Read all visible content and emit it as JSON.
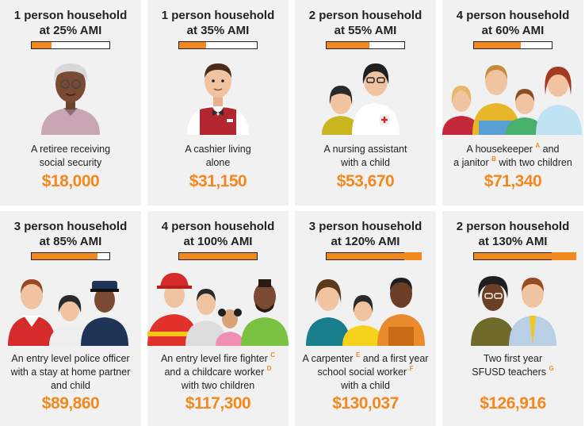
{
  "cards": [
    {
      "title_line1": "1 person household",
      "title_line2": "at 25% AMI",
      "ami_percent": 25,
      "desc_line1": "A retiree receiving",
      "desc_line2": "social security",
      "salary": "$18,000"
    },
    {
      "title_line1": "1 person household",
      "title_line2": "at 35% AMI",
      "ami_percent": 35,
      "desc_line1": "A cashier living",
      "desc_line2": "alone",
      "salary": "$31,150"
    },
    {
      "title_line1": "2 person household",
      "title_line2": "at 55% AMI",
      "ami_percent": 55,
      "desc_line1": "A nursing assistant",
      "desc_line2": "with a child",
      "salary": "$53,670"
    },
    {
      "title_line1": "4 person household",
      "title_line2": "at 60% AMI",
      "ami_percent": 60,
      "desc_line1a": "A housekeeper",
      "desc_sup1": "A",
      "desc_line1b": "and",
      "desc_line2a": "a janitor",
      "desc_sup2": "B",
      "desc_line2b": "with two children",
      "salary": "$71,340"
    },
    {
      "title_line1": "3 person household",
      "title_line2": "at 85% AMI",
      "ami_percent": 85,
      "desc_line1": "An entry level police officer",
      "desc_line2": "with a stay at home partner",
      "desc_line3": "and child",
      "salary": "$89,860"
    },
    {
      "title_line1": "4 person household",
      "title_line2": "at 100% AMI",
      "ami_percent": 100,
      "desc_line1a": "An entry level fire fighter",
      "desc_sup1": "C",
      "desc_line2a": "and a childcare worker",
      "desc_sup2": "D",
      "desc_line3": "with two children",
      "salary": "$117,300"
    },
    {
      "title_line1": "3 person household",
      "title_line2": "at 120% AMI",
      "ami_percent": 120,
      "desc_line1a": "A carpenter",
      "desc_sup1": "E",
      "desc_line1b": "and a first year",
      "desc_line2a": "school social worker",
      "desc_sup2": "F",
      "desc_line3": "with a child",
      "salary": "$130,037"
    },
    {
      "title_line1": "2 person household",
      "title_line2": "at 130% AMI",
      "ami_percent": 130,
      "desc_line1": "Two first year",
      "desc_line2a": "SFUSD teachers",
      "desc_sup2": "G",
      "salary": "$126,916"
    }
  ],
  "colors": {
    "accent": "#f2891f",
    "card_bg": "#f1f1f1",
    "text": "#222222"
  }
}
